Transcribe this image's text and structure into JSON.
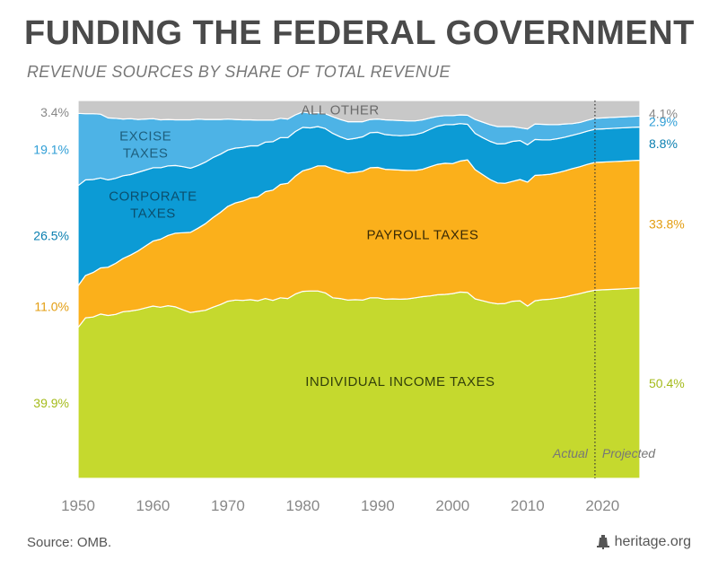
{
  "title": "FUNDING THE FEDERAL GOVERNMENT",
  "subtitle": "REVENUE SOURCES BY SHARE OF TOTAL REVENUE",
  "source": "Source: OMB.",
  "brand": "heritage.org",
  "icon": "liberty-bell-icon",
  "colors": {
    "individual": "#c5d92e",
    "payroll": "#fbb01b",
    "corporate": "#0c9bd5",
    "excise": "#4db3e6",
    "other": "#c8c8c8",
    "text_gray": "#777777",
    "label_dark": "#2f3a10"
  },
  "chart_data": {
    "type": "area",
    "stacked": true,
    "x": [
      1950,
      1951,
      1952,
      1953,
      1954,
      1955,
      1956,
      1957,
      1958,
      1959,
      1960,
      1961,
      1962,
      1963,
      1964,
      1965,
      1966,
      1967,
      1968,
      1969,
      1970,
      1971,
      1972,
      1973,
      1974,
      1975,
      1976,
      1977,
      1978,
      1979,
      1980,
      1981,
      1982,
      1983,
      1984,
      1985,
      1986,
      1987,
      1988,
      1989,
      1990,
      1991,
      1992,
      1993,
      1994,
      1995,
      1996,
      1997,
      1998,
      1999,
      2000,
      2001,
      2002,
      2003,
      2004,
      2005,
      2006,
      2007,
      2008,
      2009,
      2010,
      2011,
      2012,
      2013,
      2014,
      2015,
      2016,
      2017,
      2018,
      2019,
      2020,
      2021,
      2022,
      2023,
      2024,
      2025
    ],
    "ylim": [
      0,
      100
    ],
    "xlim": [
      1950,
      2025
    ],
    "xticks": [
      1950,
      1960,
      1970,
      1980,
      1990,
      2000,
      2010,
      2020
    ],
    "actual_projected_divider": 2019,
    "divider_labels": {
      "left": "Actual",
      "right": "Projected"
    },
    "series": [
      {
        "key": "individual",
        "name": "INDIVIDUAL INCOME TAXES",
        "values": [
          39.9,
          42.5,
          42.7,
          43.5,
          43.1,
          43.4,
          44.1,
          44.3,
          44.6,
          45.1,
          45.6,
          45.3,
          45.7,
          45.4,
          44.6,
          43.9,
          44.2,
          44.5,
          45.3,
          46.0,
          46.9,
          47.2,
          47.1,
          47.3,
          47.0,
          47.6,
          47.1,
          47.8,
          47.6,
          48.8,
          49.5,
          50.0,
          49.6,
          49.1,
          47.8,
          47.6,
          47.2,
          47.3,
          47.2,
          47.8,
          47.8,
          47.4,
          47.5,
          47.4,
          47.5,
          47.8,
          48.1,
          48.3,
          48.6,
          48.7,
          48.9,
          49.3,
          49.2,
          47.5,
          47.0,
          46.5,
          46.2,
          46.3,
          46.9,
          47.0,
          45.6,
          47.0,
          47.3,
          47.4,
          47.7,
          48.0,
          48.5,
          48.9,
          49.4,
          49.8,
          49.9,
          50.0,
          50.1,
          50.2,
          50.3,
          50.4
        ]
      },
      {
        "key": "payroll",
        "name": "PAYROLL TAXES",
        "values": [
          11.0,
          11.2,
          11.8,
          12.2,
          12.8,
          13.5,
          14.1,
          14.8,
          15.6,
          16.4,
          17.2,
          18.0,
          18.6,
          19.5,
          20.4,
          21.2,
          22.0,
          22.9,
          23.7,
          24.4,
          25.1,
          25.7,
          26.3,
          26.9,
          27.5,
          28.3,
          29.2,
          30.0,
          30.5,
          31.2,
          31.9,
          32.6,
          33.1,
          33.6,
          34.1,
          33.8,
          33.6,
          33.7,
          34.1,
          34.4,
          34.5,
          34.4,
          34.2,
          34.2,
          34.0,
          33.7,
          33.7,
          34.2,
          34.5,
          34.7,
          34.4,
          34.7,
          35.1,
          34.2,
          33.4,
          32.6,
          32.0,
          31.8,
          31.7,
          32.1,
          32.8,
          33.2,
          33.0,
          33.1,
          33.2,
          33.4,
          33.5,
          33.6,
          33.7,
          33.8,
          33.8,
          33.8,
          33.8,
          33.8,
          33.8,
          33.8
        ]
      },
      {
        "key": "corporate",
        "name": "CORPORATE TAXES",
        "values": [
          26.5,
          25.3,
          24.6,
          23.8,
          23.1,
          22.5,
          21.9,
          21.3,
          20.8,
          20.1,
          19.4,
          18.9,
          18.4,
          17.9,
          17.5,
          17.0,
          16.6,
          16.3,
          15.9,
          15.4,
          14.9,
          14.5,
          14.2,
          13.8,
          13.5,
          13.1,
          12.8,
          12.4,
          12.1,
          11.8,
          11.5,
          10.9,
          10.4,
          9.9,
          9.4,
          9.0,
          8.9,
          9.0,
          9.1,
          9.3,
          9.3,
          9.2,
          9.1,
          9.1,
          9.3,
          9.5,
          9.7,
          9.9,
          10.1,
          10.2,
          10.3,
          9.9,
          9.4,
          9.6,
          9.8,
          10.1,
          10.3,
          10.5,
          10.6,
          10.3,
          9.9,
          9.5,
          9.3,
          9.1,
          9.0,
          8.9,
          8.8,
          8.8,
          8.8,
          8.8,
          8.8,
          8.8,
          8.8,
          8.8,
          8.8,
          8.8
        ]
      },
      {
        "key": "excise",
        "name": "EXCISE TAXES",
        "values": [
          19.1,
          17.5,
          17.4,
          16.9,
          16.4,
          15.9,
          15.0,
          14.8,
          14.0,
          13.5,
          13.0,
          12.7,
          12.3,
          12.1,
          12.4,
          12.8,
          12.3,
          11.3,
          10.1,
          9.2,
          8.2,
          7.6,
          7.3,
          6.9,
          6.8,
          5.8,
          5.7,
          5.1,
          4.9,
          4.4,
          4.1,
          3.9,
          3.7,
          3.9,
          4.4,
          4.6,
          4.7,
          4.4,
          4.0,
          3.5,
          3.5,
          3.9,
          4.0,
          4.0,
          3.8,
          3.6,
          3.4,
          3.0,
          2.6,
          2.4,
          2.4,
          2.3,
          2.4,
          3.7,
          4.1,
          4.4,
          4.6,
          4.5,
          3.9,
          3.4,
          4.2,
          4.1,
          4.1,
          4.0,
          3.7,
          3.5,
          3.1,
          2.9,
          2.9,
          2.9,
          2.9,
          2.9,
          2.9,
          2.9,
          2.9,
          2.9
        ]
      },
      {
        "key": "other",
        "name": "ALL OTHER",
        "values": [
          3.4,
          3.5,
          3.5,
          3.6,
          4.6,
          4.7,
          4.9,
          4.8,
          5.0,
          4.9,
          4.8,
          5.1,
          5.0,
          5.1,
          5.1,
          5.1,
          4.9,
          5.0,
          5.0,
          5.0,
          4.9,
          5.0,
          5.1,
          5.1,
          5.2,
          5.2,
          5.2,
          4.7,
          4.9,
          3.8,
          3.0,
          3.4,
          3.2,
          3.5,
          4.3,
          5.0,
          5.6,
          5.6,
          5.6,
          5.0,
          4.9,
          5.1,
          5.2,
          5.3,
          5.4,
          5.4,
          5.1,
          4.6,
          4.2,
          4.0,
          4.0,
          3.8,
          3.9,
          5.0,
          5.7,
          6.4,
          6.9,
          6.9,
          6.9,
          7.2,
          7.5,
          6.2,
          6.3,
          6.4,
          6.4,
          6.2,
          6.1,
          5.8,
          5.2,
          4.7,
          4.6,
          4.5,
          4.4,
          4.3,
          4.2,
          4.1
        ]
      }
    ],
    "left_labels": [
      {
        "key": "other",
        "text": "3.4%"
      },
      {
        "key": "excise",
        "text": "19.1%"
      },
      {
        "key": "corporate",
        "text": "26.5%"
      },
      {
        "key": "payroll",
        "text": "11.0%"
      },
      {
        "key": "individual",
        "text": "39.9%"
      }
    ],
    "right_labels": [
      {
        "key": "other",
        "text": "4.1%"
      },
      {
        "key": "excise",
        "text": "2.9%"
      },
      {
        "key": "corporate",
        "text": "8.8%"
      },
      {
        "key": "payroll",
        "text": "33.8%"
      },
      {
        "key": "individual",
        "text": "50.4%"
      }
    ],
    "area_labels": [
      {
        "key": "other",
        "lines": [
          "ALL OTHER"
        ]
      },
      {
        "key": "excise",
        "lines": [
          "EXCISE",
          "TAXES"
        ]
      },
      {
        "key": "corporate",
        "lines": [
          "CORPORATE",
          "TAXES"
        ]
      },
      {
        "key": "payroll",
        "lines": [
          "PAYROLL TAXES"
        ]
      },
      {
        "key": "individual",
        "lines": [
          "INDIVIDUAL INCOME TAXES"
        ]
      }
    ]
  }
}
